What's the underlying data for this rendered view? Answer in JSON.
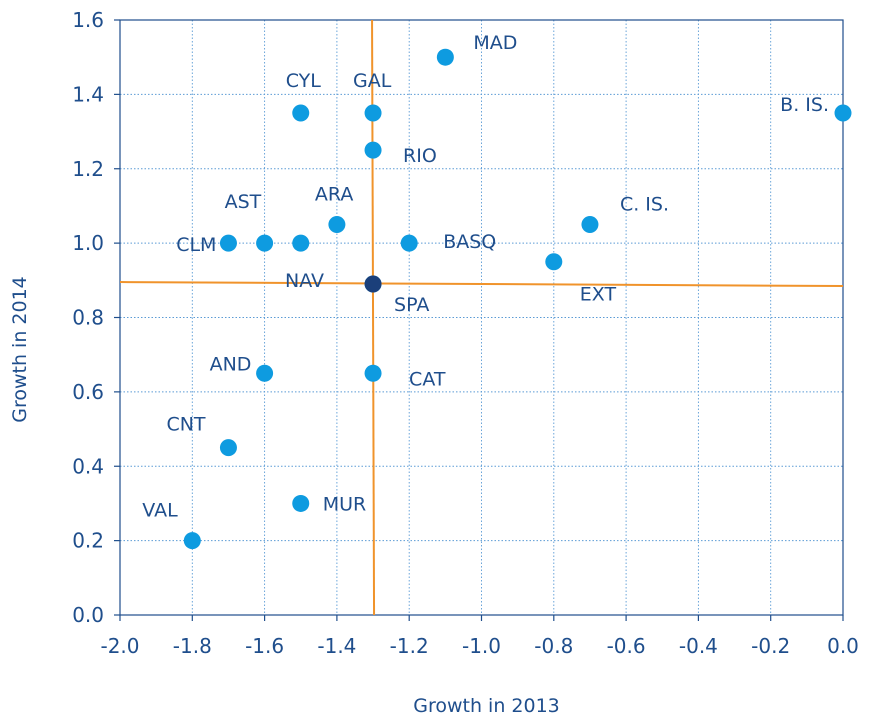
{
  "chart_data": {
    "type": "scatter",
    "title": "",
    "xlabel": "Growth in 2013",
    "ylabel": "Growth in 2014",
    "xlim": [
      -2.0,
      0.0
    ],
    "ylim": [
      0.0,
      1.6
    ],
    "x_ticks": [
      "-2.0",
      "-1.8",
      "-1.6",
      "-1.4",
      "-1.2",
      "-1.0",
      "-0.8",
      "-0.6",
      "-0.4",
      "-0.2",
      "0.0"
    ],
    "y_ticks": [
      "0.0",
      "0.2",
      "0.4",
      "0.6",
      "0.8",
      "1.0",
      "1.2",
      "1.4",
      "1.6"
    ],
    "grid": true,
    "point_color": "#0e9be0",
    "highlight_color": "#1b3f7a",
    "reference_line_color": "#f0932b",
    "reference_lines": {
      "x": -1.3,
      "y": 0.89
    },
    "points": [
      {
        "label": "MAD",
        "x": -1.1,
        "y": 1.5
      },
      {
        "label": "CYL",
        "x": -1.5,
        "y": 1.35
      },
      {
        "label": "GAL",
        "x": -1.3,
        "y": 1.35
      },
      {
        "label": "B. IS.",
        "x": 0.0,
        "y": 1.35
      },
      {
        "label": "RIO",
        "x": -1.3,
        "y": 1.25
      },
      {
        "label": "ARA",
        "x": -1.4,
        "y": 1.05
      },
      {
        "label": "AST",
        "x": -1.6,
        "y": 1.0
      },
      {
        "label": "",
        "x": -1.5,
        "y": 1.0
      },
      {
        "label": "CLM",
        "x": -1.7,
        "y": 1.0
      },
      {
        "label": "BASQ",
        "x": -1.2,
        "y": 1.0
      },
      {
        "label": "C. IS.",
        "x": -0.7,
        "y": 1.05
      },
      {
        "label": "EXT",
        "x": -0.8,
        "y": 0.95
      },
      {
        "label": "NAV",
        "x": -1.3,
        "y": 0.89
      },
      {
        "label": "SPA",
        "x": -1.3,
        "y": 0.89,
        "highlight": true
      },
      {
        "label": "AND",
        "x": -1.6,
        "y": 0.65
      },
      {
        "label": "CAT",
        "x": -1.3,
        "y": 0.65
      },
      {
        "label": "CNT",
        "x": -1.7,
        "y": 0.45
      },
      {
        "label": "MUR",
        "x": -1.5,
        "y": 0.3
      },
      {
        "label": "VAL",
        "x": -1.8,
        "y": 0.2
      }
    ]
  }
}
